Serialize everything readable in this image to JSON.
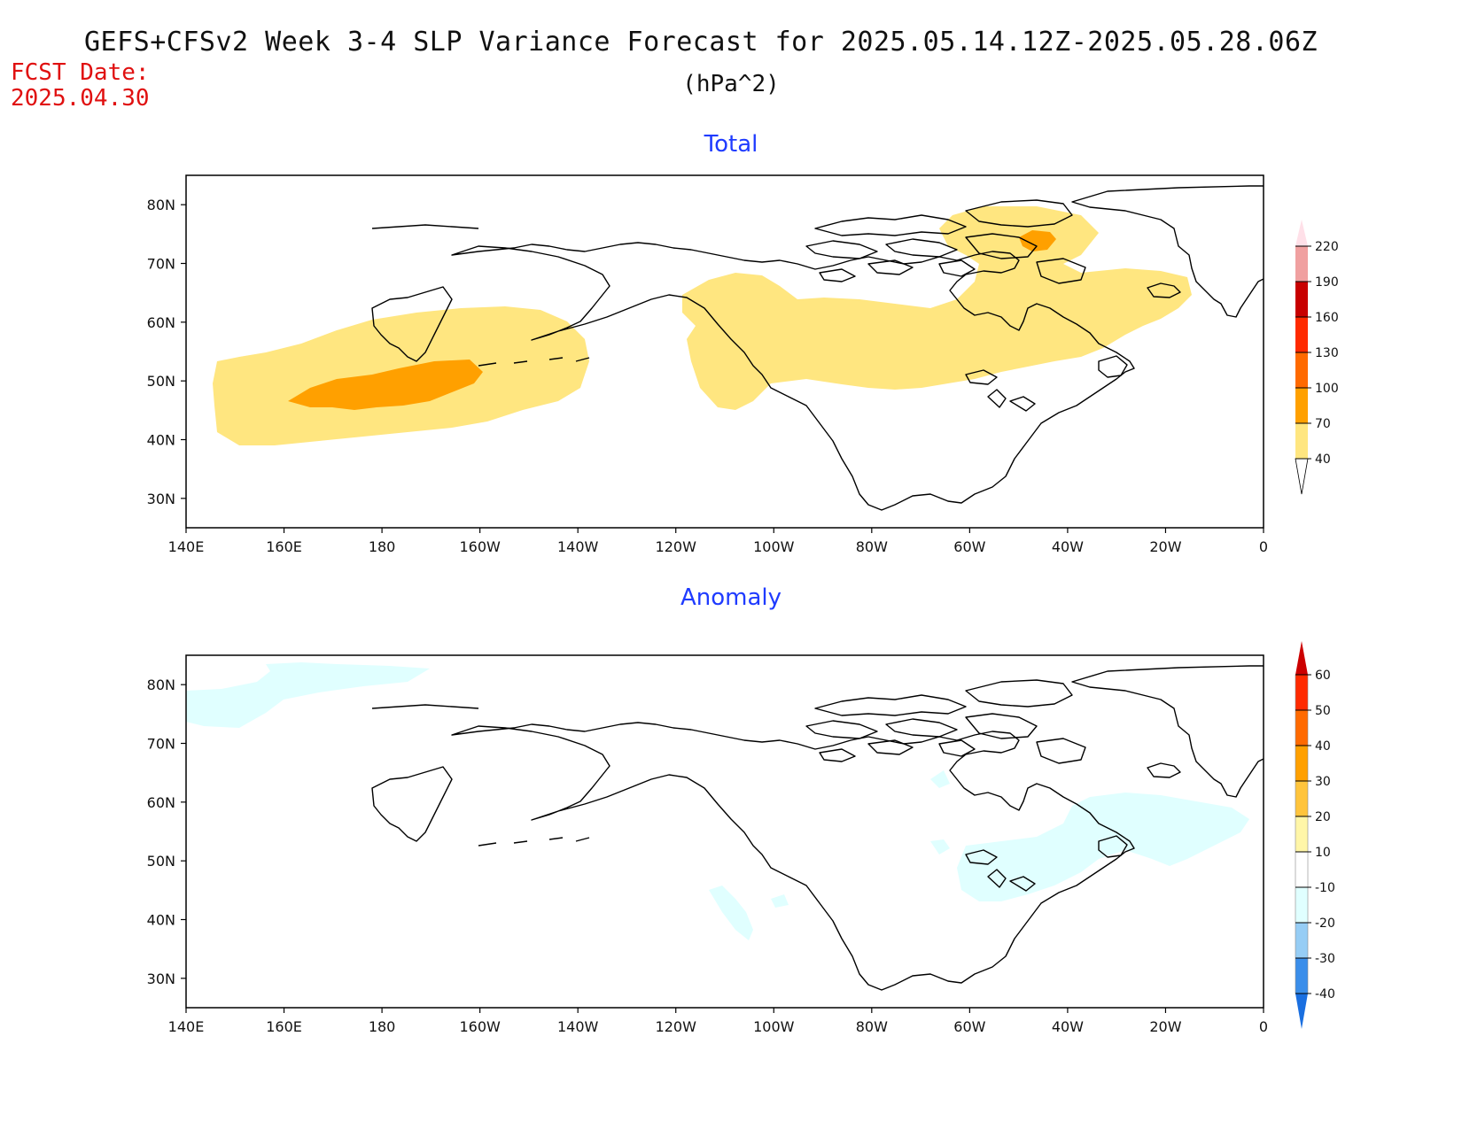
{
  "header": {
    "title": "GEFS+CFSv2 Week 3-4 SLP Variance Forecast for 2025.05.14.12Z-2025.05.28.06Z",
    "units": "(hPa^2)",
    "fcst_label": "FCST Date:",
    "fcst_date": "2025.04.30"
  },
  "axes": {
    "lon_labels": [
      "140E",
      "160E",
      "180",
      "160W",
      "140W",
      "120W",
      "100W",
      "80W",
      "60W",
      "40W",
      "20W",
      "0"
    ],
    "lat_labels": [
      "30N",
      "40N",
      "50N",
      "60N",
      "70N",
      "80N"
    ]
  },
  "panels": {
    "total": {
      "title": "Total",
      "colorbar": {
        "labels": [
          "40",
          "70",
          "100",
          "130",
          "160",
          "190",
          "220"
        ],
        "colors": [
          "#ffe680",
          "#ffa000",
          "#ff6a00",
          "#ff2a00",
          "#c80000",
          "#f0a0a0",
          "#ffe0e8"
        ]
      }
    },
    "anomaly": {
      "title": "Anomaly",
      "colorbar": {
        "labels": [
          "-40",
          "-30",
          "-20",
          "-10",
          "10",
          "20",
          "30",
          "40",
          "50",
          "60"
        ],
        "colors": [
          "#1a6fe0",
          "#3a8eea",
          "#96cdf5",
          "#e0ffff",
          "#ffffff",
          "#fff6a8",
          "#ffc43c",
          "#ffa000",
          "#ff6a00",
          "#ff2a00",
          "#cc0000"
        ]
      }
    }
  }
}
